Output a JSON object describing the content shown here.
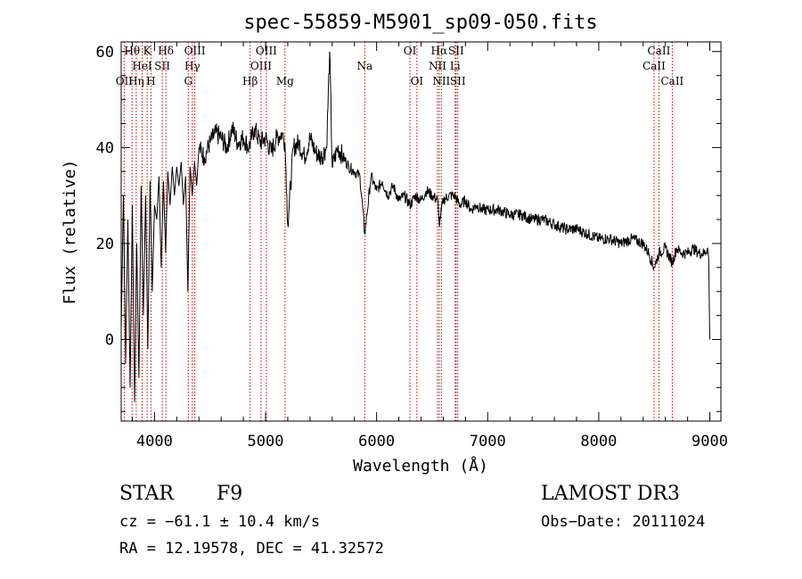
{
  "chart_data": {
    "type": "line",
    "title": "spec-55859-M5901_sp09-050.fits",
    "xlabel": "Wavelength (Å)",
    "ylabel": "Flux (relative)",
    "xlim": [
      3700,
      9100
    ],
    "ylim": [
      -17,
      62
    ],
    "xticks": [
      4000,
      5000,
      6000,
      7000,
      8000,
      9000
    ],
    "yticks": [
      0,
      20,
      40,
      60
    ],
    "series": [
      {
        "name": "flux",
        "x": [
          3700,
          3720,
          3740,
          3760,
          3780,
          3800,
          3820,
          3840,
          3860,
          3880,
          3900,
          3920,
          3940,
          3960,
          3980,
          4000,
          4020,
          4040,
          4060,
          4080,
          4100,
          4120,
          4140,
          4160,
          4180,
          4200,
          4220,
          4240,
          4260,
          4280,
          4300,
          4320,
          4340,
          4360,
          4380,
          4400,
          4450,
          4500,
          4550,
          4600,
          4650,
          4700,
          4750,
          4800,
          4850,
          4900,
          4950,
          5000,
          5050,
          5100,
          5150,
          5175,
          5200,
          5250,
          5300,
          5350,
          5400,
          5450,
          5500,
          5550,
          5577,
          5600,
          5650,
          5700,
          5750,
          5800,
          5850,
          5893,
          5950,
          6000,
          6050,
          6100,
          6150,
          6200,
          6250,
          6300,
          6350,
          6400,
          6450,
          6500,
          6550,
          6563,
          6600,
          6650,
          6700,
          6750,
          6800,
          6850,
          6900,
          6950,
          7000,
          7100,
          7200,
          7300,
          7400,
          7500,
          7600,
          7700,
          7800,
          7900,
          8000,
          8100,
          8200,
          8300,
          8400,
          8450,
          8498,
          8542,
          8600,
          8662,
          8700,
          8750,
          8800,
          8850,
          8900,
          8950,
          8980,
          8990,
          9000
        ],
        "values": [
          2,
          30,
          -5,
          25,
          -10,
          28,
          -13,
          20,
          -8,
          32,
          5,
          30,
          -2,
          33,
          10,
          28,
          25,
          34,
          15,
          33,
          18,
          35,
          28,
          36,
          30,
          36,
          32,
          37,
          28,
          34,
          10,
          36,
          30,
          37,
          32,
          40,
          38,
          41,
          43,
          42,
          40,
          44,
          41,
          42,
          40,
          44,
          41,
          42,
          39,
          42,
          43,
          41,
          24,
          40,
          41,
          38,
          42,
          39,
          38,
          40,
          60,
          36,
          40,
          38,
          36,
          35,
          34,
          22,
          34,
          31,
          33,
          30,
          32,
          29,
          30,
          28,
          30,
          29,
          31,
          30,
          29,
          24,
          29,
          30,
          30,
          28,
          29,
          27,
          28,
          27,
          27,
          27,
          26,
          26,
          25,
          25,
          24,
          23,
          23,
          22,
          21,
          21,
          20,
          21,
          20,
          18,
          15,
          18,
          19,
          16,
          19,
          18,
          18,
          19,
          18,
          18,
          19,
          17,
          0
        ]
      }
    ],
    "line_markers": [
      {
        "label": "OII",
        "wavelength": 3727,
        "row": 2
      },
      {
        "label": "Hθ",
        "wavelength": 3798,
        "row": 0
      },
      {
        "label": "Hη",
        "wavelength": 3835,
        "row": 2
      },
      {
        "label": "HeI",
        "wavelength": 3889,
        "row": 1
      },
      {
        "label": "K",
        "wavelength": 3934,
        "row": 0
      },
      {
        "label": "H",
        "wavelength": 3968,
        "row": 2
      },
      {
        "label": "SII",
        "wavelength": 4070,
        "row": 1
      },
      {
        "label": "Hδ",
        "wavelength": 4102,
        "row": 0
      },
      {
        "label": "G",
        "wavelength": 4304,
        "row": 2
      },
      {
        "label": "Hγ",
        "wavelength": 4340,
        "row": 1
      },
      {
        "label": "OIII",
        "wavelength": 4363,
        "row": 0
      },
      {
        "label": "Hβ",
        "wavelength": 4861,
        "row": 2
      },
      {
        "label": "OIII",
        "wavelength": 4959,
        "row": 1
      },
      {
        "label": "OIII",
        "wavelength": 5007,
        "row": 0
      },
      {
        "label": "Mg",
        "wavelength": 5175,
        "row": 2
      },
      {
        "label": "Na",
        "wavelength": 5893,
        "row": 1
      },
      {
        "label": "OI",
        "wavelength": 6300,
        "row": 0
      },
      {
        "label": "OI",
        "wavelength": 6363,
        "row": 2
      },
      {
        "label": "NII",
        "wavelength": 6548,
        "row": 1
      },
      {
        "label": "Hα",
        "wavelength": 6563,
        "row": 0
      },
      {
        "label": "NII",
        "wavelength": 6583,
        "row": 2
      },
      {
        "label": "Li",
        "wavelength": 6707,
        "row": 1
      },
      {
        "label": "SII",
        "wavelength": 6716,
        "row": 0
      },
      {
        "label": "SII",
        "wavelength": 6731,
        "row": 2
      },
      {
        "label": "CaII",
        "wavelength": 8498,
        "row": 1
      },
      {
        "label": "CaII",
        "wavelength": 8542,
        "row": 0
      },
      {
        "label": "CaII",
        "wavelength": 8662,
        "row": 2
      }
    ],
    "marker_color": "#cc0000"
  },
  "info": {
    "class_label": "STAR",
    "subclass": "F9",
    "survey": "LAMOST DR3",
    "redshift": "cz = −61.1 ± 10.4 km/s",
    "obs_date": "Obs−Date: 20111024",
    "coords": "RA =  12.19578, DEC =  41.32572"
  }
}
